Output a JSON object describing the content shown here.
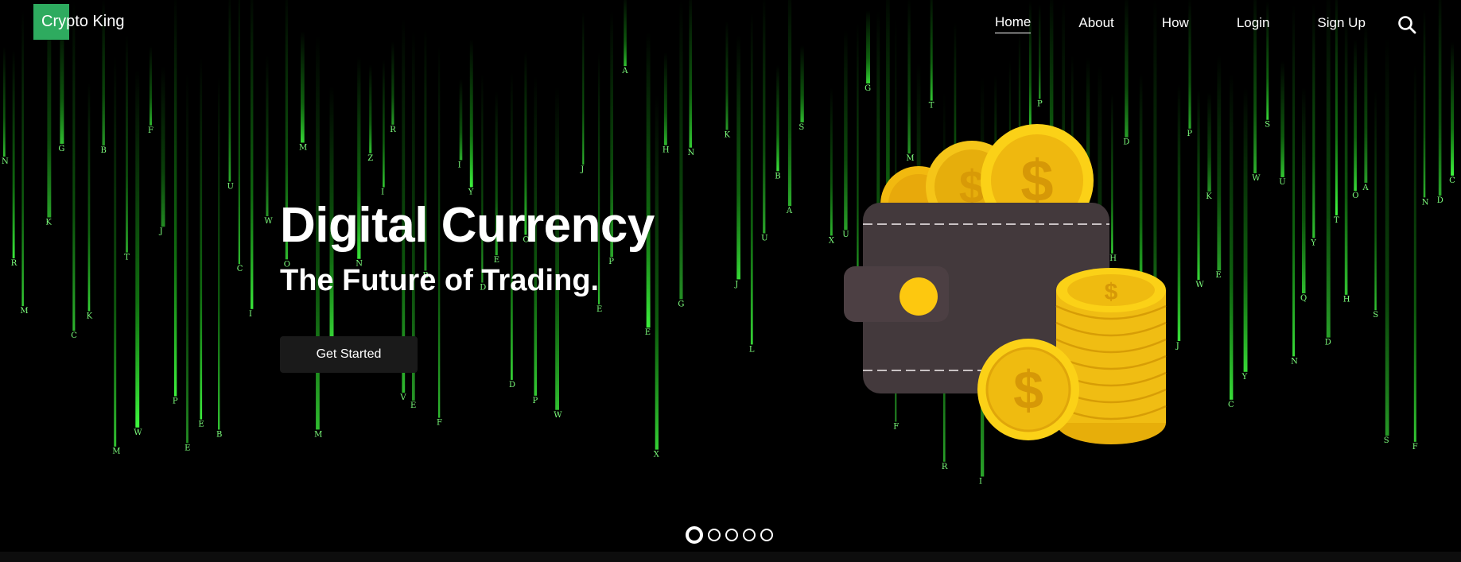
{
  "brand": {
    "name": "Crypto King",
    "accent": "#2eab5f"
  },
  "nav": {
    "items": [
      {
        "label": "Home",
        "active": true
      },
      {
        "label": "About",
        "active": false
      },
      {
        "label": "How",
        "active": false
      },
      {
        "label": "Login",
        "active": false
      },
      {
        "label": "Sign Up",
        "active": false
      }
    ],
    "search_icon": "search-icon"
  },
  "hero": {
    "title": "Digital Currency",
    "subtitle": "The Future of Trading.",
    "cta_label": "Get Started",
    "illustration": "wallet-with-gold-coins",
    "rain_color": "#1fd21f"
  },
  "carousel": {
    "slide_count": 5,
    "active_index": 0
  }
}
